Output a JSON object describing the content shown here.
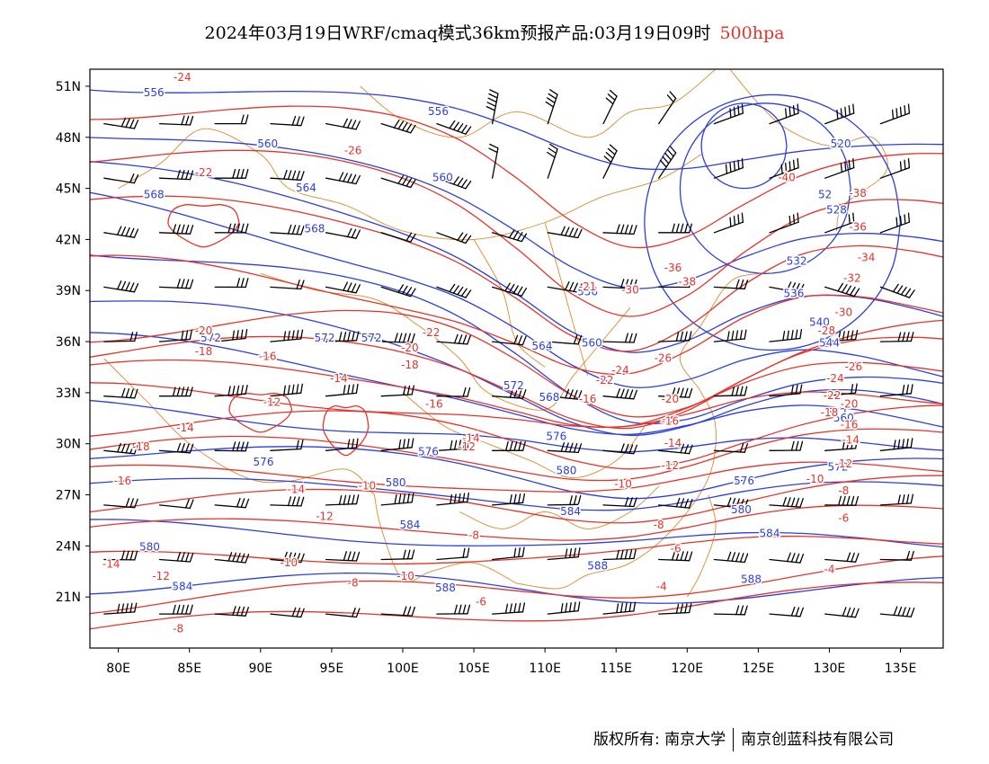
{
  "title": {
    "main": "2024年03月19日WRF/cmaq模式36km预报产品:03月19日09时",
    "level": "500hpa"
  },
  "colors": {
    "height_contours": "#2b3fe0",
    "temp_contours": "#e8332a",
    "boundaries": "#e08a2a",
    "wind_barbs": "#000000",
    "level_text": "#e8332a"
  },
  "footer": {
    "copyright": "版权所有: 南京大学",
    "company": "南京创蓝科技有限公司"
  },
  "chart_data": {
    "type": "contour_map",
    "x_axis": {
      "range": [
        78,
        138
      ],
      "unit": "E",
      "ticks": [
        80,
        85,
        90,
        95,
        100,
        105,
        110,
        115,
        120,
        125,
        130,
        135
      ],
      "tick_labels": [
        "80E",
        "85E",
        "90E",
        "95E",
        "100E",
        "105E",
        "110E",
        "115E",
        "120E",
        "125E",
        "130E",
        "135E"
      ]
    },
    "y_axis": {
      "range": [
        18,
        52
      ],
      "unit": "N",
      "ticks": [
        21,
        24,
        27,
        30,
        33,
        36,
        39,
        42,
        45,
        48,
        51
      ],
      "tick_labels": [
        "21N",
        "24N",
        "27N",
        "30N",
        "33N",
        "36N",
        "39N",
        "42N",
        "45N",
        "48N",
        "51N"
      ]
    },
    "height_labels": [
      {
        "text": "556",
        "lon": 82.5,
        "lat": 50.6
      },
      {
        "text": "556",
        "lon": 102.5,
        "lat": 49.5
      },
      {
        "text": "560",
        "lon": 90.5,
        "lat": 47.6
      },
      {
        "text": "560",
        "lon": 102.8,
        "lat": 45.6
      },
      {
        "text": "564",
        "lon": 93.2,
        "lat": 45.0
      },
      {
        "text": "568",
        "lon": 82.5,
        "lat": 44.6
      },
      {
        "text": "568",
        "lon": 93.8,
        "lat": 42.6
      },
      {
        "text": "572",
        "lon": 86.5,
        "lat": 36.2
      },
      {
        "text": "572",
        "lon": 94.5,
        "lat": 36.2
      },
      {
        "text": "572",
        "lon": 97.8,
        "lat": 36.2
      },
      {
        "text": "572",
        "lon": 107.8,
        "lat": 33.4
      },
      {
        "text": "576",
        "lon": 90.2,
        "lat": 28.9
      },
      {
        "text": "576",
        "lon": 101.8,
        "lat": 29.5
      },
      {
        "text": "576",
        "lon": 110.8,
        "lat": 30.4
      },
      {
        "text": "580",
        "lon": 99.5,
        "lat": 27.7
      },
      {
        "text": "580",
        "lon": 111.5,
        "lat": 28.4
      },
      {
        "text": "584",
        "lon": 100.5,
        "lat": 25.2
      },
      {
        "text": "584",
        "lon": 111.8,
        "lat": 26.0
      },
      {
        "text": "584",
        "lon": 84.5,
        "lat": 21.6
      },
      {
        "text": "580",
        "lon": 82.2,
        "lat": 23.9
      },
      {
        "text": "588",
        "lon": 103.0,
        "lat": 21.5
      },
      {
        "text": "588",
        "lon": 113.7,
        "lat": 22.8
      },
      {
        "text": "588",
        "lon": 124.5,
        "lat": 22.0
      },
      {
        "text": "584",
        "lon": 125.8,
        "lat": 24.7
      },
      {
        "text": "580",
        "lon": 123.8,
        "lat": 26.1
      },
      {
        "text": "576",
        "lon": 124.0,
        "lat": 27.8
      },
      {
        "text": "568",
        "lon": 110.3,
        "lat": 32.7
      },
      {
        "text": "564",
        "lon": 109.8,
        "lat": 35.7
      },
      {
        "text": "560",
        "lon": 113.3,
        "lat": 35.9
      },
      {
        "text": "556",
        "lon": 113.0,
        "lat": 38.9
      },
      {
        "text": "532",
        "lon": 127.7,
        "lat": 40.7
      },
      {
        "text": "536",
        "lon": 127.5,
        "lat": 38.8
      },
      {
        "text": "540",
        "lon": 129.3,
        "lat": 37.1
      },
      {
        "text": "544",
        "lon": 130.0,
        "lat": 35.9
      },
      {
        "text": "552",
        "lon": 130.5,
        "lat": 31.8
      },
      {
        "text": "560",
        "lon": 131.0,
        "lat": 31.5
      },
      {
        "text": "572",
        "lon": 130.6,
        "lat": 28.6
      },
      {
        "text": "52",
        "lon": 129.7,
        "lat": 44.6
      },
      {
        "text": "520",
        "lon": 130.8,
        "lat": 47.6
      },
      {
        "text": "528",
        "lon": 130.5,
        "lat": 43.7
      }
    ],
    "temperature_labels": [
      {
        "text": "-24",
        "lon": 84.5,
        "lat": 51.5
      },
      {
        "text": "-26",
        "lon": 96.5,
        "lat": 47.2
      },
      {
        "text": "-22",
        "lon": 86.0,
        "lat": 45.9
      },
      {
        "text": "-20",
        "lon": 86.0,
        "lat": 36.6
      },
      {
        "text": "-18",
        "lon": 86.0,
        "lat": 35.4
      },
      {
        "text": "-16",
        "lon": 90.5,
        "lat": 35.1
      },
      {
        "text": "-22",
        "lon": 102.0,
        "lat": 36.5
      },
      {
        "text": "-20",
        "lon": 100.5,
        "lat": 35.6
      },
      {
        "text": "-18",
        "lon": 100.5,
        "lat": 34.6
      },
      {
        "text": "-14",
        "lon": 95.5,
        "lat": 33.8
      },
      {
        "text": "-12",
        "lon": 90.8,
        "lat": 32.4
      },
      {
        "text": "-16",
        "lon": 102.2,
        "lat": 32.3
      },
      {
        "text": "-14",
        "lon": 84.7,
        "lat": 30.9
      },
      {
        "text": "-18",
        "lon": 81.6,
        "lat": 29.8
      },
      {
        "text": "-16",
        "lon": 80.3,
        "lat": 27.8
      },
      {
        "text": "-14",
        "lon": 104.8,
        "lat": 30.3
      },
      {
        "text": "-12",
        "lon": 104.5,
        "lat": 29.8
      },
      {
        "text": "-14",
        "lon": 92.5,
        "lat": 27.3
      },
      {
        "text": "-12",
        "lon": 94.5,
        "lat": 25.7
      },
      {
        "text": "-10",
        "lon": 97.5,
        "lat": 27.5
      },
      {
        "text": "-8",
        "lon": 105.0,
        "lat": 24.6
      },
      {
        "text": "-10",
        "lon": 92.0,
        "lat": 23.0
      },
      {
        "text": "-8",
        "lon": 96.5,
        "lat": 21.8
      },
      {
        "text": "-10",
        "lon": 100.2,
        "lat": 22.2
      },
      {
        "text": "-6",
        "lon": 105.5,
        "lat": 20.7
      },
      {
        "text": "-14",
        "lon": 79.5,
        "lat": 22.9
      },
      {
        "text": "-12",
        "lon": 83.0,
        "lat": 22.2
      },
      {
        "text": "-8",
        "lon": 84.2,
        "lat": 19.1
      },
      {
        "text": "-21",
        "lon": 113.0,
        "lat": 39.2
      },
      {
        "text": "-30",
        "lon": 116.0,
        "lat": 39.0
      },
      {
        "text": "-24",
        "lon": 115.3,
        "lat": 34.3
      },
      {
        "text": "-22",
        "lon": 114.2,
        "lat": 33.7
      },
      {
        "text": "-26",
        "lon": 118.3,
        "lat": 35.0
      },
      {
        "text": "-16",
        "lon": 113.0,
        "lat": 32.6
      },
      {
        "text": "-20",
        "lon": 118.8,
        "lat": 32.6
      },
      {
        "text": "-16",
        "lon": 118.8,
        "lat": 31.3
      },
      {
        "text": "-14",
        "lon": 119.0,
        "lat": 30.0
      },
      {
        "text": "-12",
        "lon": 118.8,
        "lat": 28.7
      },
      {
        "text": "-10",
        "lon": 115.5,
        "lat": 27.6
      },
      {
        "text": "-8",
        "lon": 118.0,
        "lat": 25.2
      },
      {
        "text": "-6",
        "lon": 119.2,
        "lat": 23.8
      },
      {
        "text": "-4",
        "lon": 118.2,
        "lat": 21.6
      },
      {
        "text": "-36",
        "lon": 119.0,
        "lat": 40.3
      },
      {
        "text": "-38",
        "lon": 120.0,
        "lat": 39.5
      },
      {
        "text": "-40",
        "lon": 127.0,
        "lat": 45.6
      },
      {
        "text": "-38",
        "lon": 132.0,
        "lat": 44.7
      },
      {
        "text": "-36",
        "lon": 132.0,
        "lat": 42.7
      },
      {
        "text": "-34",
        "lon": 132.6,
        "lat": 40.9
      },
      {
        "text": "-32",
        "lon": 131.6,
        "lat": 39.7
      },
      {
        "text": "-30",
        "lon": 131.0,
        "lat": 37.7
      },
      {
        "text": "-28",
        "lon": 129.8,
        "lat": 36.6
      },
      {
        "text": "-26",
        "lon": 131.7,
        "lat": 34.5
      },
      {
        "text": "-24",
        "lon": 130.4,
        "lat": 33.8
      },
      {
        "text": "-22",
        "lon": 130.2,
        "lat": 32.8
      },
      {
        "text": "-20",
        "lon": 131.4,
        "lat": 32.3
      },
      {
        "text": "-18",
        "lon": 130.0,
        "lat": 31.8
      },
      {
        "text": "-16",
        "lon": 131.4,
        "lat": 31.1
      },
      {
        "text": "-14",
        "lon": 131.5,
        "lat": 30.2
      },
      {
        "text": "-12",
        "lon": 131.0,
        "lat": 28.8
      },
      {
        "text": "-10",
        "lon": 129.0,
        "lat": 27.9
      },
      {
        "text": "-8",
        "lon": 131.0,
        "lat": 27.2
      },
      {
        "text": "-6",
        "lon": 131.0,
        "lat": 25.6
      },
      {
        "text": "-4",
        "lon": 130.0,
        "lat": 22.6
      }
    ]
  }
}
